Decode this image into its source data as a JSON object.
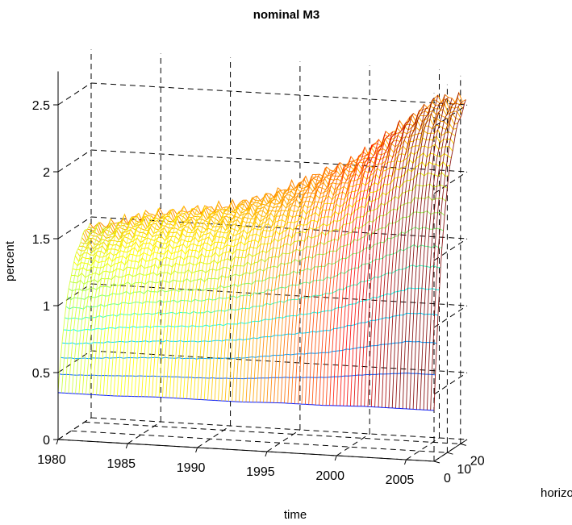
{
  "chart_data": {
    "type": "surface",
    "title": "nominal M3",
    "xlabel": "time",
    "ylabel": "horizon",
    "zlabel": "percent",
    "x_ticks": [
      "1980",
      "1985",
      "1990",
      "1995",
      "2000",
      "2005"
    ],
    "y_ticks": [
      "0",
      "10",
      "20"
    ],
    "z_ticks": [
      "0",
      "0.5",
      "1",
      "1.5",
      "2",
      "2.5"
    ],
    "x_range": [
      1980,
      2007
    ],
    "y_range": [
      0,
      25
    ],
    "z_range": [
      0,
      2.5
    ],
    "colormap": "jet",
    "grid": true,
    "surface": {
      "description_free": true,
      "horizon_values": [
        0,
        2,
        4,
        6,
        8,
        10,
        12,
        14,
        16,
        18,
        20,
        22,
        24
      ],
      "time_values": [
        1981,
        1984,
        1987,
        1990,
        1993,
        1996,
        1999,
        2002,
        2005,
        2007
      ],
      "percent_at_horizon_0": [
        0.35,
        0.35,
        0.36,
        0.36,
        0.36,
        0.37,
        0.37,
        0.38,
        0.38,
        0.38
      ],
      "percent_at_horizon_24": [
        1.45,
        1.55,
        1.6,
        1.65,
        1.75,
        1.9,
        2.05,
        2.3,
        2.55,
        2.55
      ]
    }
  }
}
